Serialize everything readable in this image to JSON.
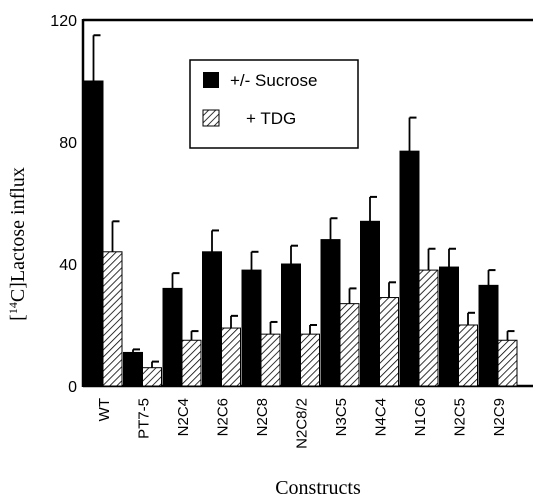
{
  "chart_data": {
    "type": "bar",
    "title": "",
    "xlabel": "Constructs",
    "ylabel": "[14C]Lactose influx",
    "ylabel_parts": {
      "pre": "[",
      "sup": "14",
      "post": "C]Lactose influx"
    },
    "ylim": [
      0,
      120
    ],
    "yticks": [
      "0",
      "40",
      "80",
      "120"
    ],
    "grid": false,
    "legend_position": "top-center",
    "categories": [
      "WT",
      "PT7-5",
      "N2C4",
      "N2C6",
      "N2C8",
      "N2C8/2",
      "N3C5",
      "N4C4",
      "N1C6",
      "N2C5",
      "N2C9"
    ],
    "series": [
      {
        "name": "+/- Sucrose",
        "fill": "solid",
        "color": "#000000",
        "values": [
          100,
          11,
          32,
          44,
          38,
          40,
          48,
          54,
          77,
          39,
          33
        ],
        "errors": [
          15,
          1,
          5,
          7,
          6,
          6,
          7,
          8,
          11,
          6,
          5
        ]
      },
      {
        "name": "+ TDG",
        "fill": "hatched",
        "color": "#000000",
        "values": [
          44,
          6,
          15,
          19,
          17,
          17,
          27,
          29,
          38,
          20,
          15
        ],
        "errors": [
          10,
          2,
          3,
          4,
          4,
          3,
          5,
          5,
          7,
          4,
          3
        ]
      }
    ]
  }
}
